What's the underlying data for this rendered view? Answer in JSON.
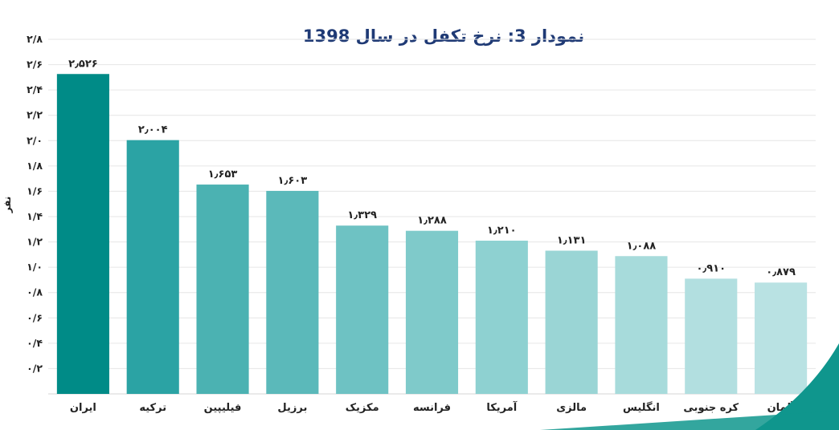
{
  "chart_data": {
    "type": "bar",
    "title": "نمودار 3: نرخ تکفل در سال 1398",
    "xlabel": "",
    "ylabel": "نفر",
    "ylim": [
      0,
      2.8
    ],
    "yticks": [
      0.2,
      0.4,
      0.6,
      0.8,
      1.0,
      1.2,
      1.4,
      1.6,
      1.8,
      2.0,
      2.2,
      2.4,
      2.6,
      2.8
    ],
    "ytick_labels": [
      "۰/۲",
      "۰/۴",
      "۰/۶",
      "۰/۸",
      "۱/۰",
      "۱/۲",
      "۱/۴",
      "۱/۶",
      "۱/۸",
      "۲/۰",
      "۲/۲",
      "۲/۴",
      "۲/۶",
      "۲/۸"
    ],
    "grid": true,
    "legend": "none",
    "categories": [
      "ایران",
      "ترکیه",
      "فیلیپین",
      "برزیل",
      "مکزیک",
      "فرانسه",
      "آمریکا",
      "مالزی",
      "انگلیس",
      "کره جنوبی",
      "آلمان"
    ],
    "values": [
      2.526,
      2.004,
      1.653,
      1.603,
      1.329,
      1.288,
      1.21,
      1.131,
      1.088,
      0.91,
      0.879
    ],
    "value_labels": [
      "۲٫۵۲۶",
      "۲٫۰۰۴",
      "۱٫۶۵۳",
      "۱٫۶۰۳",
      "۱٫۳۲۹",
      "۱٫۲۸۸",
      "۱٫۲۱۰",
      "۱٫۱۳۱",
      "۱٫۰۸۸",
      "۰٫۹۱۰",
      "۰٫۸۷۹"
    ],
    "bar_colors": [
      "#008b87",
      "#2ba3a4",
      "#4bb2b2",
      "#5bb9ba",
      "#6ec2c3",
      "#7fcaca",
      "#8ed1d1",
      "#9ad5d5",
      "#a7dbdb",
      "#b2dfe0",
      "#b9e2e3"
    ]
  },
  "decoration": {
    "accent_color": "#0f968d"
  }
}
